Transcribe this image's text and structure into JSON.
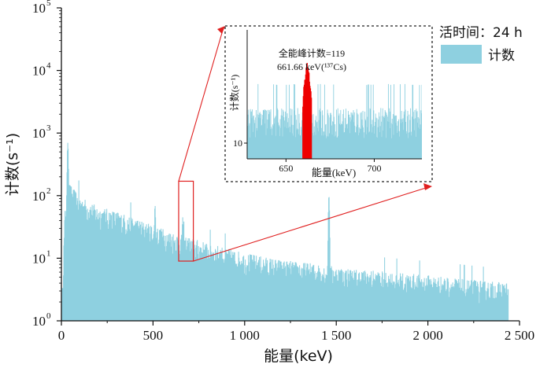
{
  "chart_data": [
    {
      "type": "bar",
      "role": "main-spectrum",
      "xlabel": "能量(keV)",
      "ylabel": "计数(s⁻¹)",
      "xlim": [
        0,
        2500
      ],
      "ylim": [
        1,
        100000
      ],
      "y_scale": "log",
      "x_ticks": [
        0,
        500,
        1000,
        1500,
        2000,
        2500
      ],
      "x_tick_labels": [
        "0",
        "500",
        "1 000",
        "1 500",
        "2 000",
        "2 500"
      ],
      "y_ticks": [
        1,
        10,
        100,
        1000,
        10000,
        100000
      ],
      "y_tick_labels": [
        "10",
        "10",
        "10",
        "10",
        "10",
        "10"
      ],
      "y_tick_exponents": [
        "0",
        "1",
        "2",
        "3",
        "4",
        "5"
      ],
      "series": [
        {
          "name": "计数",
          "color": "#8ed0e0"
        }
      ],
      "envelope": {
        "x": [
          0,
          20,
          35,
          60,
          100,
          150,
          200,
          300,
          400,
          500,
          600,
          700,
          800,
          900,
          1000,
          1200,
          1400,
          1600,
          1800,
          2000,
          2200,
          2440
        ],
        "y": [
          1,
          50,
          130,
          100,
          75,
          60,
          50,
          42,
          33,
          25,
          20,
          16,
          13,
          11,
          9,
          7,
          6,
          5,
          4.5,
          4,
          3.5,
          3
        ]
      },
      "peaks": [
        {
          "x": 35,
          "y": 700
        },
        {
          "x": 511,
          "y": 70
        },
        {
          "x": 662,
          "y": 45
        },
        {
          "x": 1460,
          "y": 100
        }
      ],
      "x_end": 2440,
      "highlight_box": {
        "x": [
          640,
          720
        ],
        "y": [
          9,
          170
        ]
      },
      "legend_position": "top-right",
      "legend_title": "活时间：24 h",
      "legend_label": "计数",
      "legend_color": "#8ed0e0"
    },
    {
      "type": "bar",
      "role": "inset-zoom",
      "xlabel": "能量(keV)",
      "ylabel": "计数(s⁻¹)",
      "xlim": [
        628,
        727
      ],
      "y_scale": "log",
      "x_ticks": [
        650,
        700
      ],
      "x_tick_labels": [
        "650",
        "700"
      ],
      "y_ticks": [
        10
      ],
      "y_tick_labels": [
        "10"
      ],
      "peak": {
        "x": [
          659.5,
          664.5
        ],
        "color": "#ee0000"
      },
      "annotation_line1": "全能峰计数=119",
      "annotation_line2": "661.66 keV(¹³⁷Cs)"
    }
  ]
}
